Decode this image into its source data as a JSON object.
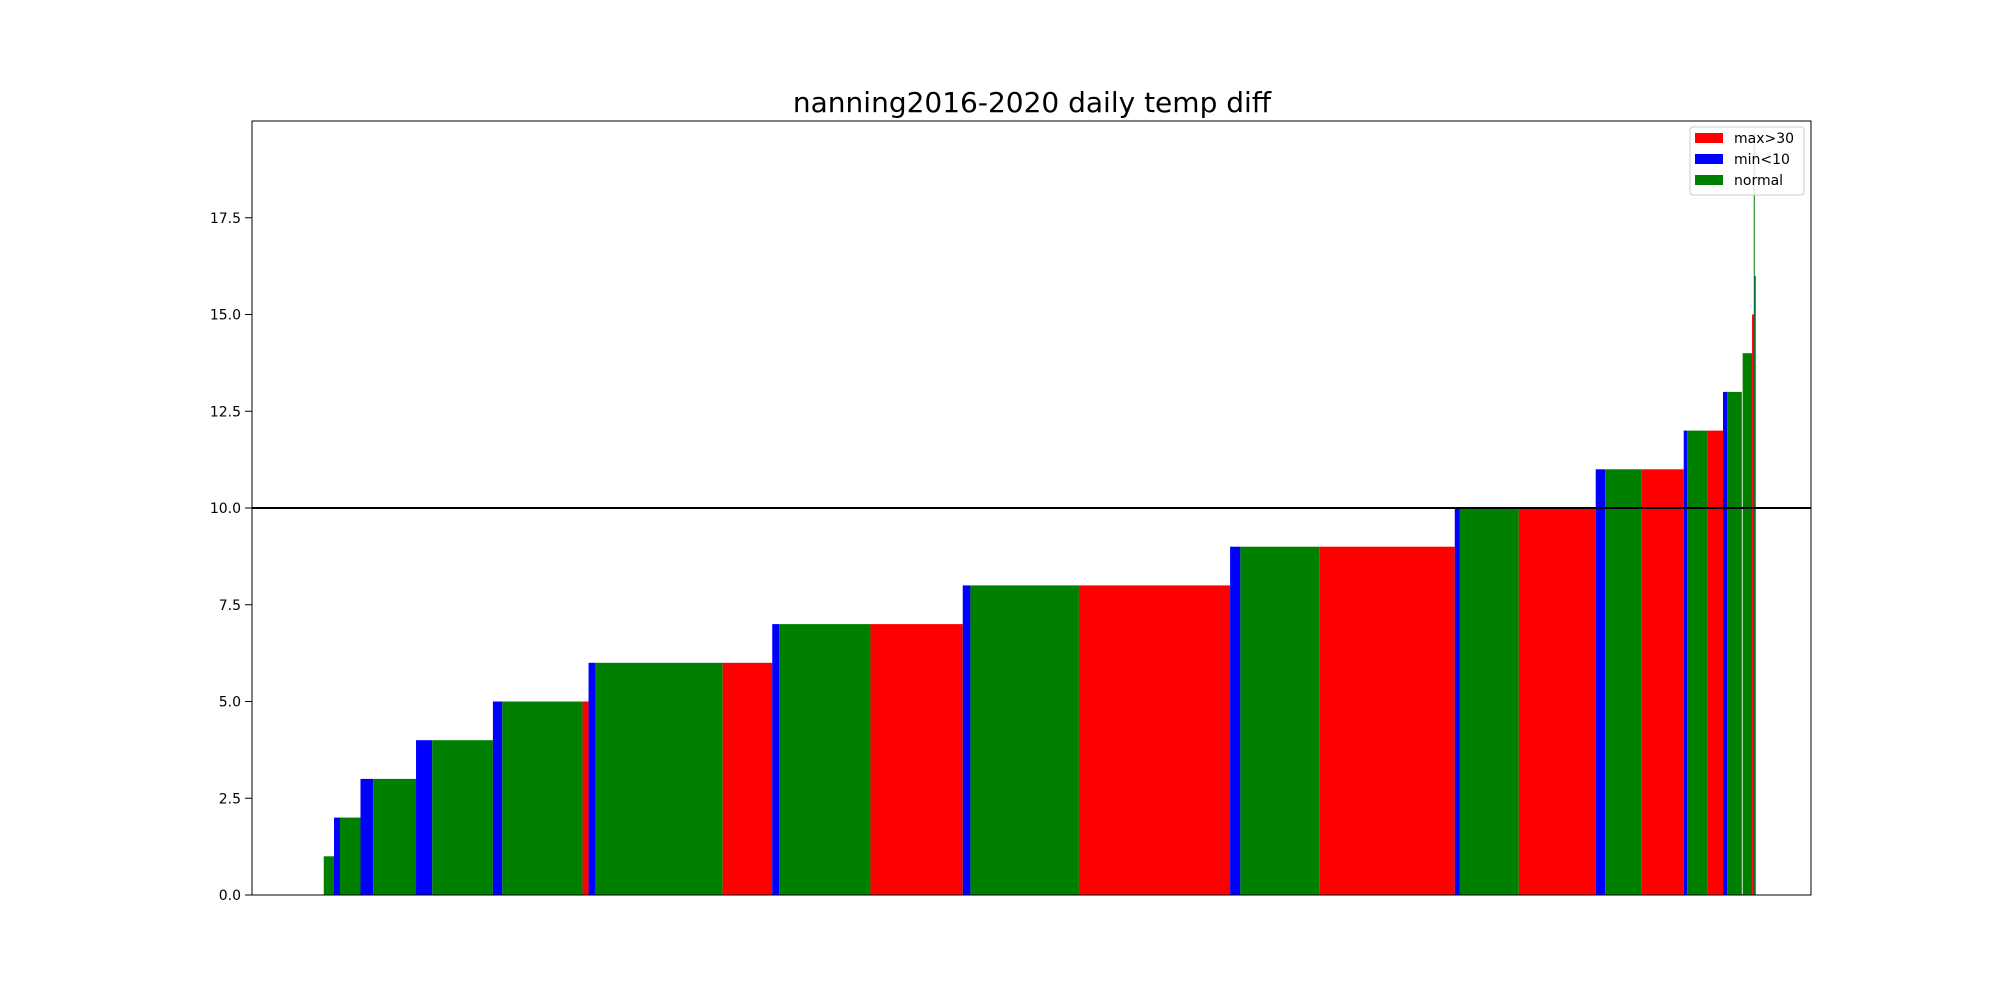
{
  "chart_data": {
    "type": "bar",
    "title": "nanning2016-2020 daily temp diff",
    "xlabel": "",
    "ylabel": "",
    "ylim": [
      0,
      20
    ],
    "xlim": [
      0,
      1825
    ],
    "yticks": [
      "0.0",
      "2.5",
      "5.0",
      "7.5",
      "10.0",
      "12.5",
      "15.0",
      "17.5"
    ],
    "reference_line": {
      "y": 10.0,
      "color": "#000000"
    },
    "grid": false,
    "legend_position": "upper right",
    "series": [
      {
        "name": "max>30",
        "color": "#ff0000"
      },
      {
        "name": "min<10",
        "color": "#0000ff"
      },
      {
        "name": "normal",
        "color": "#008000"
      }
    ],
    "bars": [
      {
        "series": "normal",
        "x0": 84,
        "x1": 96,
        "value": 1
      },
      {
        "series": "min<10",
        "x0": 96,
        "x1": 103,
        "value": 2
      },
      {
        "series": "normal",
        "x0": 103,
        "x1": 127,
        "value": 2
      },
      {
        "series": "min<10",
        "x0": 127,
        "x1": 142,
        "value": 3
      },
      {
        "series": "normal",
        "x0": 142,
        "x1": 192,
        "value": 3
      },
      {
        "series": "min<10",
        "x0": 192,
        "x1": 211,
        "value": 4
      },
      {
        "series": "normal",
        "x0": 211,
        "x1": 282,
        "value": 4
      },
      {
        "series": "min<10",
        "x0": 282,
        "x1": 293,
        "value": 5
      },
      {
        "series": "normal",
        "x0": 293,
        "x1": 387,
        "value": 5
      },
      {
        "series": "max>30",
        "x0": 387,
        "x1": 394,
        "value": 5
      },
      {
        "series": "min<10",
        "x0": 394,
        "x1": 402,
        "value": 6
      },
      {
        "series": "normal",
        "x0": 402,
        "x1": 551,
        "value": 6
      },
      {
        "series": "max>30",
        "x0": 551,
        "x1": 609,
        "value": 6
      },
      {
        "series": "min<10",
        "x0": 609,
        "x1": 617,
        "value": 7
      },
      {
        "series": "normal",
        "x0": 617,
        "x1": 724,
        "value": 7
      },
      {
        "series": "max>30",
        "x0": 724,
        "x1": 832,
        "value": 7
      },
      {
        "series": "min<10",
        "x0": 832,
        "x1": 841,
        "value": 8
      },
      {
        "series": "normal",
        "x0": 841,
        "x1": 968,
        "value": 8
      },
      {
        "series": "max>30",
        "x0": 968,
        "x1": 1145,
        "value": 8
      },
      {
        "series": "min<10",
        "x0": 1145,
        "x1": 1157,
        "value": 9
      },
      {
        "series": "normal",
        "x0": 1157,
        "x1": 1250,
        "value": 9
      },
      {
        "series": "max>30",
        "x0": 1250,
        "x1": 1408,
        "value": 9
      },
      {
        "series": "min<10",
        "x0": 1408,
        "x1": 1414,
        "value": 10
      },
      {
        "series": "normal",
        "x0": 1414,
        "x1": 1483,
        "value": 10
      },
      {
        "series": "max>30",
        "x0": 1483,
        "x1": 1573,
        "value": 10
      },
      {
        "series": "min<10",
        "x0": 1573,
        "x1": 1584,
        "value": 11
      },
      {
        "series": "normal",
        "x0": 1584,
        "x1": 1627,
        "value": 11
      },
      {
        "series": "max>30",
        "x0": 1627,
        "x1": 1676,
        "value": 11
      },
      {
        "series": "min<10",
        "x0": 1676,
        "x1": 1680,
        "value": 12
      },
      {
        "series": "normal",
        "x0": 1680,
        "x1": 1704,
        "value": 12
      },
      {
        "series": "max>30",
        "x0": 1704,
        "x1": 1722,
        "value": 12
      },
      {
        "series": "min<10",
        "x0": 1722,
        "x1": 1727,
        "value": 13
      },
      {
        "series": "normal",
        "x0": 1727,
        "x1": 1744,
        "value": 13
      },
      {
        "series": "normal",
        "x0": 1745,
        "x1": 1756,
        "value": 14
      },
      {
        "series": "max>30",
        "x0": 1756,
        "x1": 1759,
        "value": 15
      },
      {
        "series": "min<10",
        "x0": 1759,
        "x1": 1760,
        "value": 16
      },
      {
        "series": "normal",
        "x0": 1758,
        "x1": 1759,
        "value": 19.7
      }
    ]
  }
}
